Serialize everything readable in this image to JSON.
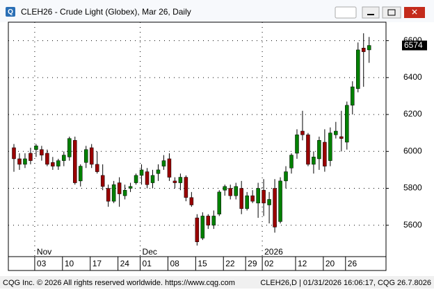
{
  "window_title": "CLEH26 - Crude Light (Globex), Mar 26, Daily",
  "footer": {
    "left": "CQG Inc. © 2026 All rights reserved worldwide. https://www.cqg.com",
    "right": "CLEH26,D | 01/31/2026 16:06:17, CQG 26.7.8026"
  },
  "chart_data": {
    "type": "candlestick",
    "open": [
      6020,
      5960,
      5930,
      5990,
      6010,
      6010,
      5990,
      5940,
      5920,
      5950,
      5970,
      6060,
      5840,
      5940,
      6020,
      5930,
      5870,
      5800,
      5730,
      5830,
      5760,
      5800,
      5830,
      5870,
      5890,
      5830,
      5880,
      5920,
      5960,
      5840,
      5830,
      5860,
      5750,
      5640,
      5530,
      5650,
      5600,
      5660,
      5790,
      5800,
      5760,
      5800,
      5690,
      5760,
      5720,
      5790,
      5710,
      5800,
      5620,
      5840,
      5910,
      5990,
      6110,
      6090,
      5930,
      5960,
      6050,
      5950,
      6090,
      6080,
      6050,
      6250,
      6340,
      6560,
      6550
    ],
    "high": [
      6040,
      5990,
      5990,
      6020,
      6040,
      6030,
      6010,
      5970,
      5960,
      6000,
      6080,
      6080,
      5930,
      6030,
      6040,
      6000,
      5930,
      5820,
      5840,
      5860,
      5820,
      5830,
      5880,
      5930,
      5910,
      5900,
      5930,
      5980,
      5990,
      5860,
      5880,
      5870,
      5780,
      5660,
      5670,
      5660,
      5680,
      5790,
      5820,
      5820,
      5830,
      5840,
      5780,
      5790,
      5830,
      5850,
      5780,
      5850,
      5860,
      5920,
      5990,
      6120,
      6220,
      6100,
      6000,
      6080,
      6120,
      6130,
      6160,
      6220,
      6270,
      6380,
      6590,
      6640,
      6620
    ],
    "low": [
      5890,
      5900,
      5910,
      5930,
      5970,
      5950,
      5920,
      5900,
      5900,
      5920,
      5950,
      5820,
      5810,
      5910,
      5910,
      5880,
      5790,
      5700,
      5720,
      5700,
      5740,
      5780,
      5820,
      5820,
      5800,
      5800,
      5840,
      5900,
      5840,
      5800,
      5790,
      5730,
      5700,
      5490,
      5520,
      5580,
      5580,
      5650,
      5760,
      5740,
      5740,
      5660,
      5680,
      5720,
      5640,
      5650,
      5610,
      5560,
      5610,
      5800,
      5880,
      5960,
      6060,
      5920,
      5880,
      5900,
      5890,
      5920,
      6070,
      6000,
      6010,
      6200,
      6320,
      6350,
      6480
    ],
    "close": [
      5960,
      5930,
      5960,
      5950,
      6030,
      5980,
      5930,
      5920,
      5950,
      5980,
      6070,
      5830,
      5920,
      6010,
      5930,
      5890,
      5810,
      5730,
      5820,
      5770,
      5790,
      5810,
      5870,
      5900,
      5820,
      5870,
      5900,
      5950,
      5860,
      5830,
      5860,
      5750,
      5710,
      5510,
      5650,
      5600,
      5650,
      5780,
      5810,
      5760,
      5810,
      5690,
      5760,
      5730,
      5800,
      5720,
      5740,
      5590,
      5840,
      5890,
      5980,
      6090,
      6090,
      5930,
      5970,
      6060,
      5920,
      6100,
      6110,
      6070,
      6250,
      6350,
      6550,
      6540,
      6574
    ],
    "up_color": "#008000",
    "down_color": "#990000",
    "ylim": [
      5430,
      6700
    ],
    "yticks": [
      5600,
      5800,
      6000,
      6200,
      6400,
      6600
    ],
    "grid": true,
    "xticks": [
      {
        "value": 4,
        "label": "03"
      },
      {
        "value": 9,
        "label": "10"
      },
      {
        "value": 14,
        "label": "17"
      },
      {
        "value": 19,
        "label": "24"
      },
      {
        "value": 23,
        "label": "01"
      },
      {
        "value": 28,
        "label": "08"
      },
      {
        "value": 33,
        "label": "15"
      },
      {
        "value": 38,
        "label": "22"
      },
      {
        "value": 42,
        "label": "29"
      },
      {
        "value": 45,
        "label": "02"
      },
      {
        "value": 51,
        "label": "12"
      },
      {
        "value": 56,
        "label": "20"
      },
      {
        "value": 60,
        "label": "26"
      }
    ],
    "x_period_labels": [
      {
        "value": 4,
        "label": "Nov"
      },
      {
        "value": 23,
        "label": "Dec"
      },
      {
        "value": 45,
        "label": "2026"
      }
    ]
  }
}
